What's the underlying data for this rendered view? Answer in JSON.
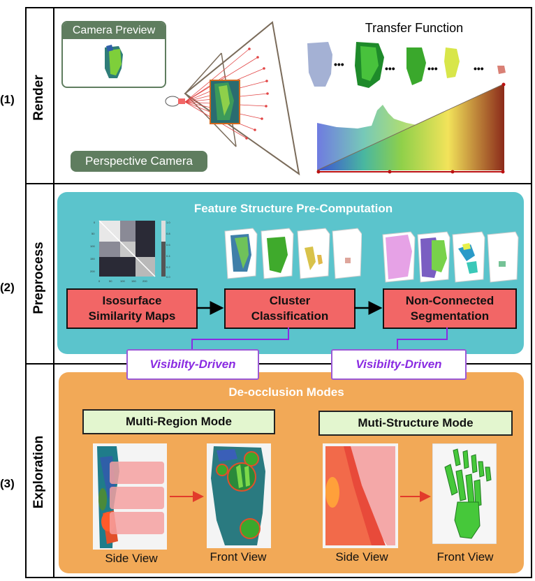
{
  "rows": [
    {
      "number": "(1)",
      "label": "Render"
    },
    {
      "number": "(2)",
      "label": "Preprocess"
    },
    {
      "number": "(3)",
      "label": "Exploration"
    }
  ],
  "render": {
    "camera_preview": "Camera Preview",
    "perspective_camera": "Perspective Camera",
    "transfer_function": "Transfer Function",
    "ellipsis": "•••"
  },
  "preprocess": {
    "title": "Feature Structure Pre-Computation",
    "boxes": [
      {
        "line1": "Isosurface",
        "line2": "Similarity Maps"
      },
      {
        "line1": "Cluster",
        "line2": "Classification"
      },
      {
        "line1": "Non-Connected",
        "line2": "Segmentation"
      }
    ],
    "heatmap_ticks_y": [
      "0",
      "50",
      "100",
      "150",
      "200"
    ],
    "heatmap_ticks_x": [
      "0",
      "50",
      "100",
      "150",
      "200"
    ],
    "colorbar_ticks": [
      "1.0",
      "0.8",
      "0.6",
      "0.4",
      "0.2",
      "0.0"
    ]
  },
  "visibility": {
    "left": "Visibilty-Driven",
    "right": "Visibilty-Driven"
  },
  "exploration": {
    "title": "De-occlusion Modes",
    "modes": [
      "Multi-Region Mode",
      "Muti-Structure Mode"
    ],
    "captions": [
      "Side View",
      "Front View",
      "Side View",
      "Front View"
    ]
  },
  "colors": {
    "teal_panel": "#5bc4cc",
    "orange_panel": "#f2a957",
    "red_box": "#f26666",
    "green_box": "#e3f6cf",
    "purple": "#8a2be2",
    "camera_pill": "#5f7d5f"
  }
}
